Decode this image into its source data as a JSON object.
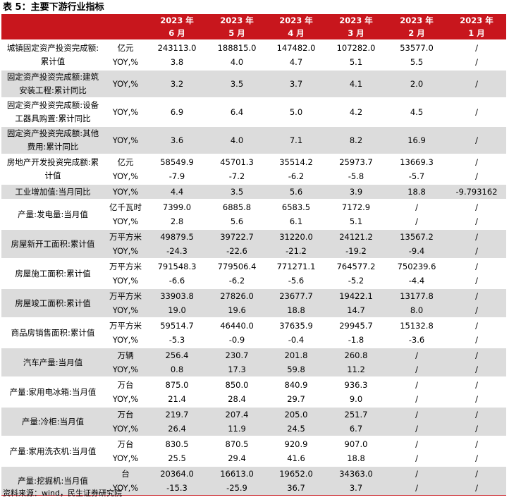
{
  "header": {
    "title": "表 5：主要下游行业指标"
  },
  "table": {
    "years": [
      "2023 年",
      "2023 年",
      "2023 年",
      "2023 年",
      "2023 年",
      "2023 年"
    ],
    "months": [
      "6 月",
      "5 月",
      "4 月",
      "3 月",
      "2 月",
      "1 月"
    ],
    "groups": [
      {
        "label": "城镇固定资产投资完成额:累计值",
        "rows": [
          {
            "unit": "亿元",
            "values": [
              "243113.0",
              "188815.0",
              "147482.0",
              "107282.0",
              "53577.0",
              "/"
            ]
          },
          {
            "unit": "YOY,%",
            "values": [
              "3.8",
              "4.0",
              "4.7",
              "5.1",
              "5.5",
              "/"
            ]
          }
        ]
      },
      {
        "label": "固定资产投资完成额:建筑安装工程:累计同比",
        "rows": [
          {
            "unit": "YOY,%",
            "values": [
              "3.2",
              "3.5",
              "3.7",
              "4.1",
              "2.0",
              "/"
            ]
          }
        ]
      },
      {
        "label": "固定资产投资完成额:设备工器具购置:累计同比",
        "rows": [
          {
            "unit": "YOY,%",
            "values": [
              "6.9",
              "6.4",
              "5.0",
              "4.2",
              "4.5",
              "/"
            ]
          }
        ]
      },
      {
        "label": "固定资产投资完成额:其他费用:累计同比",
        "rows": [
          {
            "unit": "YOY,%",
            "values": [
              "3.6",
              "4.0",
              "7.1",
              "8.2",
              "16.9",
              "/"
            ]
          }
        ]
      },
      {
        "label": "房地产开发投资完成额:累计值",
        "rows": [
          {
            "unit": "亿元",
            "values": [
              "58549.9",
              "45701.3",
              "35514.2",
              "25973.7",
              "13669.3",
              "/"
            ]
          },
          {
            "unit": "YOY,%",
            "values": [
              "-7.9",
              "-7.2",
              "-6.2",
              "-5.8",
              "-5.7",
              "/"
            ]
          }
        ]
      },
      {
        "label": "工业增加值:当月同比",
        "rows": [
          {
            "unit": "YOY,%",
            "values": [
              "4.4",
              "3.5",
              "5.6",
              "3.9",
              "18.8",
              "-9.793162"
            ]
          }
        ]
      },
      {
        "label": "产量:发电量:当月值",
        "rows": [
          {
            "unit": "亿千瓦时",
            "values": [
              "7399.0",
              "6885.8",
              "6583.5",
              "7172.9",
              "/",
              "/"
            ]
          },
          {
            "unit": "YOY,%",
            "values": [
              "2.8",
              "5.6",
              "6.1",
              "5.1",
              "/",
              "/"
            ]
          }
        ]
      },
      {
        "label": "房屋新开工面积:累计值",
        "rows": [
          {
            "unit": "万平方米",
            "values": [
              "49879.5",
              "39722.7",
              "31220.0",
              "24121.2",
              "13567.2",
              "/"
            ]
          },
          {
            "unit": "YOY,%",
            "values": [
              "-24.3",
              "-22.6",
              "-21.2",
              "-19.2",
              "-9.4",
              "/"
            ]
          }
        ]
      },
      {
        "label": "房屋施工面积:累计值",
        "rows": [
          {
            "unit": "万平方米",
            "values": [
              "791548.3",
              "779506.4",
              "771271.1",
              "764577.2",
              "750239.6",
              "/"
            ]
          },
          {
            "unit": "YOY,%",
            "values": [
              "-6.6",
              "-6.2",
              "-5.6",
              "-5.2",
              "-4.4",
              "/"
            ]
          }
        ]
      },
      {
        "label": "房屋竣工面积:累计值",
        "rows": [
          {
            "unit": "万平方米",
            "values": [
              "33903.8",
              "27826.0",
              "23677.7",
              "19422.1",
              "13177.8",
              "/"
            ]
          },
          {
            "unit": "YOY,%",
            "values": [
              "19.0",
              "19.6",
              "18.8",
              "14.7",
              "8.0",
              "/"
            ]
          }
        ]
      },
      {
        "label": "商品房销售面积:累计值",
        "rows": [
          {
            "unit": "万平方米",
            "values": [
              "59514.7",
              "46440.0",
              "37635.9",
              "29945.7",
              "15132.8",
              "/"
            ]
          },
          {
            "unit": "YOY,%",
            "values": [
              "-5.3",
              "-0.9",
              "-0.4",
              "-1.8",
              "-3.6",
              "/"
            ]
          }
        ]
      },
      {
        "label": "汽车产量:当月值",
        "rows": [
          {
            "unit": "万辆",
            "values": [
              "256.4",
              "230.7",
              "201.8",
              "260.8",
              "/",
              "/"
            ]
          },
          {
            "unit": "YOY,%",
            "values": [
              "0.8",
              "17.3",
              "59.8",
              "11.2",
              "/",
              "/"
            ]
          }
        ]
      },
      {
        "label": "产量:家用电冰箱:当月值",
        "rows": [
          {
            "unit": "万台",
            "values": [
              "875.0",
              "850.0",
              "840.9",
              "936.3",
              "/",
              "/"
            ]
          },
          {
            "unit": "YOY,%",
            "values": [
              "21.4",
              "28.4",
              "29.7",
              "9.0",
              "/",
              "/"
            ]
          }
        ]
      },
      {
        "label": "产量:冷柜:当月值",
        "rows": [
          {
            "unit": "万台",
            "values": [
              "219.7",
              "207.4",
              "205.0",
              "251.7",
              "/",
              "/"
            ]
          },
          {
            "unit": "YOY,%",
            "values": [
              "26.4",
              "11.9",
              "24.5",
              "6.7",
              "/",
              "/"
            ]
          }
        ]
      },
      {
        "label": "产量:家用洗衣机:当月值",
        "rows": [
          {
            "unit": "万台",
            "values": [
              "830.5",
              "870.5",
              "920.9",
              "907.0",
              "/",
              "/"
            ]
          },
          {
            "unit": "YOY,%",
            "values": [
              "25.5",
              "29.4",
              "41.6",
              "18.8",
              "/",
              "/"
            ]
          }
        ]
      },
      {
        "label": "产量:挖掘机:当月值",
        "rows": [
          {
            "unit": "台",
            "values": [
              "20364.0",
              "16613.0",
              "19652.0",
              "34363.0",
              "/",
              "/"
            ]
          },
          {
            "unit": "YOY,%",
            "values": [
              "-15.3",
              "-25.9",
              "36.7",
              "3.7",
              "/",
              "/"
            ]
          }
        ]
      }
    ]
  },
  "footer": {
    "source": "资料来源：wind，民生证券研究院"
  }
}
